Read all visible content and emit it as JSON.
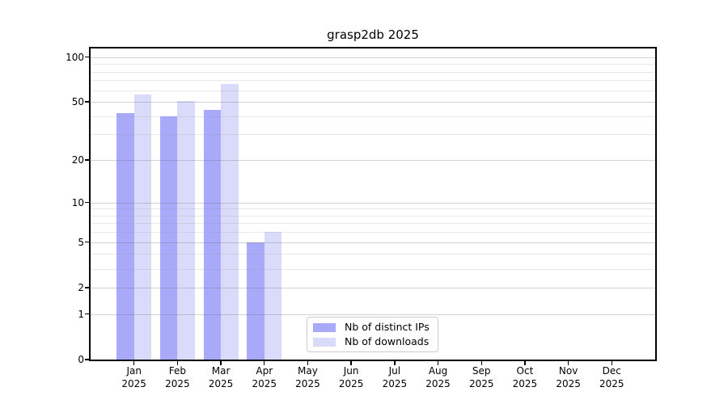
{
  "chart_data": {
    "type": "bar",
    "title": "grasp2db 2025",
    "yscale": "log1p",
    "ylim": [
      0,
      100
    ],
    "grid": true,
    "legend_position": "lower-center",
    "categories": [
      "Jan",
      "Feb",
      "Mar",
      "Apr",
      "May",
      "Jun",
      "Jul",
      "Aug",
      "Sep",
      "Oct",
      "Nov",
      "Dec"
    ],
    "category_year": "2025",
    "y_major_ticks": [
      0,
      1,
      2,
      5,
      10,
      20,
      50,
      100
    ],
    "y_minor_ticks": [
      3,
      4,
      6,
      7,
      8,
      9,
      30,
      40,
      60,
      70,
      80,
      90
    ],
    "series": [
      {
        "name": "Nb of distinct IPs",
        "color": "#a9a9fa",
        "values": [
          42,
          40,
          44,
          5,
          0,
          0,
          0,
          0,
          0,
          0,
          0,
          0
        ]
      },
      {
        "name": "Nb of downloads",
        "color": "#dadafa",
        "values": [
          56,
          51,
          66,
          6,
          0,
          0,
          0,
          0,
          0,
          0,
          0,
          0
        ]
      }
    ],
    "colors": {
      "spine": "#000000",
      "grid_major": "rgba(105,105,105,0.30)",
      "grid_minor": "rgba(150,150,150,0.22)",
      "background": "#ffffff"
    }
  }
}
